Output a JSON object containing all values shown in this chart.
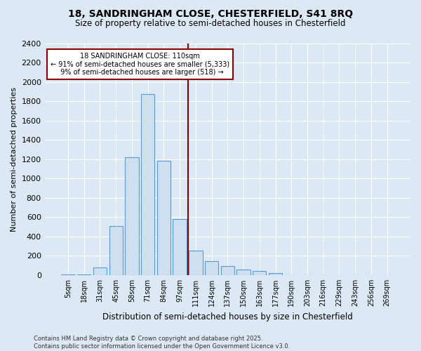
{
  "title_line1": "18, SANDRINGHAM CLOSE, CHESTERFIELD, S41 8RQ",
  "title_line2": "Size of property relative to semi-detached houses in Chesterfield",
  "xlabel": "Distribution of semi-detached houses by size in Chesterfield",
  "ylabel": "Number of semi-detached properties",
  "property_label": "18 SANDRINGHAM CLOSE: 110sqm",
  "pct_smaller": 91,
  "pct_larger": 9,
  "count_smaller": 5333,
  "count_larger": 518,
  "annotation_type": "semi-detached",
  "bar_color": "#cce0f0",
  "bar_edge_color": "#5b9bd5",
  "vline_color": "#8b0000",
  "annotation_box_color": "#8b0000",
  "background_color": "#dce9f5",
  "grid_color": "#ffffff",
  "categories": [
    "5sqm",
    "18sqm",
    "31sqm",
    "45sqm",
    "58sqm",
    "71sqm",
    "84sqm",
    "97sqm",
    "111sqm",
    "124sqm",
    "137sqm",
    "150sqm",
    "163sqm",
    "177sqm",
    "190sqm",
    "203sqm",
    "216sqm",
    "229sqm",
    "243sqm",
    "256sqm",
    "269sqm"
  ],
  "values": [
    5,
    10,
    80,
    510,
    1220,
    1870,
    1180,
    580,
    255,
    145,
    95,
    60,
    40,
    20,
    0,
    0,
    0,
    0,
    0,
    0,
    0
  ],
  "ylim": [
    0,
    2400
  ],
  "yticks": [
    0,
    200,
    400,
    600,
    800,
    1000,
    1200,
    1400,
    1600,
    1800,
    2000,
    2200,
    2400
  ],
  "footnote_line1": "Contains HM Land Registry data © Crown copyright and database right 2025.",
  "footnote_line2": "Contains public sector information licensed under the Open Government Licence v3.0."
}
